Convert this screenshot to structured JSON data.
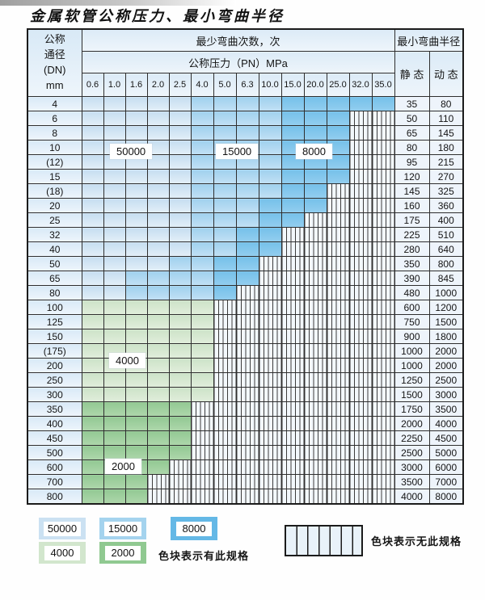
{
  "title": "金属软管公称压力、最小弯曲半径",
  "table": {
    "dn_header_lines": [
      "公称",
      "通径",
      "(DN)",
      "mm"
    ],
    "bend_cycles_header": "最少弯曲次数，次",
    "pressure_header": "公称压力（PN）MPa",
    "radius_header": "最小弯曲半径",
    "static_header": "静 态",
    "dynamic_header": "动 态",
    "pressure_columns": [
      "0.6",
      "1.0",
      "1.6",
      "2.0",
      "2.5",
      "4.0",
      "5.0",
      "6.3",
      "10.0",
      "15.0",
      "20.0",
      "25.0",
      "32.0",
      "35.0"
    ],
    "spec_labels": {
      "A": "50000",
      "B": "15000",
      "C": "8000",
      "D": "4000",
      "E": "2000",
      "X": "none"
    },
    "rows": [
      {
        "dn": "4",
        "cells": "AAAAABBBBCCCCC",
        "static": "35",
        "dynamic": "80"
      },
      {
        "dn": "6",
        "cells": "AAAAABBBBCCCXX",
        "static": "50",
        "dynamic": "110"
      },
      {
        "dn": "8",
        "cells": "AAAAABBBBCCCXX",
        "static": "65",
        "dynamic": "145"
      },
      {
        "dn": "10",
        "cells": "AAAAABBBBCCCXX",
        "static": "80",
        "dynamic": "180"
      },
      {
        "dn": "(12)",
        "cells": "AAAAABBBBCCCXX",
        "static": "95",
        "dynamic": "215"
      },
      {
        "dn": "15",
        "cells": "AAAAABBBBCCCXX",
        "static": "120",
        "dynamic": "270"
      },
      {
        "dn": "(18)",
        "cells": "AAAAABBBBCCXXX",
        "static": "145",
        "dynamic": "325"
      },
      {
        "dn": "20",
        "cells": "AAAAABBBCCCXXX",
        "static": "160",
        "dynamic": "360"
      },
      {
        "dn": "25",
        "cells": "AAAAABBBCCXXXX",
        "static": "175",
        "dynamic": "400"
      },
      {
        "dn": "32",
        "cells": "AAAAABBCCXXXXX",
        "static": "225",
        "dynamic": "510"
      },
      {
        "dn": "40",
        "cells": "AAAAABBCCXXXXX",
        "static": "280",
        "dynamic": "640"
      },
      {
        "dn": "50",
        "cells": "AAAABBCCXXXXXX",
        "static": "350",
        "dynamic": "800"
      },
      {
        "dn": "65",
        "cells": "AABBBBCCXXXXXX",
        "static": "390",
        "dynamic": "845"
      },
      {
        "dn": "80",
        "cells": "AABBBBCXXXXXXX",
        "static": "480",
        "dynamic": "1000"
      },
      {
        "dn": "100",
        "cells": "DDDDDDXXXXXXXX",
        "static": "600",
        "dynamic": "1200"
      },
      {
        "dn": "125",
        "cells": "DDDDDDXXXXXXXX",
        "static": "750",
        "dynamic": "1500"
      },
      {
        "dn": "150",
        "cells": "DDDDDDXXXXXXXX",
        "static": "900",
        "dynamic": "1800"
      },
      {
        "dn": "(175)",
        "cells": "DDDDDDXXXXXXXX",
        "static": "1000",
        "dynamic": "2000"
      },
      {
        "dn": "200",
        "cells": "DDDDDDXXXXXXXX",
        "static": "1000",
        "dynamic": "2000"
      },
      {
        "dn": "250",
        "cells": "DDDDDDXXXXXXXX",
        "static": "1250",
        "dynamic": "2500"
      },
      {
        "dn": "300",
        "cells": "DDDDDDXXXXXXXX",
        "static": "1500",
        "dynamic": "3000"
      },
      {
        "dn": "350",
        "cells": "EEEEEXXXXXXXXX",
        "static": "1750",
        "dynamic": "3500"
      },
      {
        "dn": "400",
        "cells": "EEEEEXXXXXXXXX",
        "static": "2000",
        "dynamic": "4000"
      },
      {
        "dn": "450",
        "cells": "EEEEEXXXXXXXXX",
        "static": "2250",
        "dynamic": "4500"
      },
      {
        "dn": "500",
        "cells": "EEEEEXXXXXXXXX",
        "static": "2500",
        "dynamic": "5000"
      },
      {
        "dn": "600",
        "cells": "EEEEXXXXXXXXXX",
        "static": "3000",
        "dynamic": "6000"
      },
      {
        "dn": "700",
        "cells": "EEEXXXXXXXXXXX",
        "static": "3500",
        "dynamic": "7000"
      },
      {
        "dn": "800",
        "cells": "EEEXXXXXXXXXXX",
        "static": "4000",
        "dynamic": "8000"
      }
    ]
  },
  "overlay_labels": {
    "cycles_50000": "50000",
    "cycles_15000": "15000",
    "cycles_8000": "8000",
    "cycles_4000": "4000",
    "cycles_2000": "2000"
  },
  "legend": {
    "items": [
      {
        "label": "50000",
        "color": "#cbe1f2"
      },
      {
        "label": "15000",
        "color": "#a4d3ee"
      },
      {
        "label": "8000",
        "color": "#64b8e6"
      },
      {
        "label": "4000",
        "color": "#d2e6cd"
      },
      {
        "label": "2000",
        "color": "#90c991"
      }
    ],
    "available_note": "色块表示有此规格",
    "unavailable_note": "色块表示无此规格"
  }
}
